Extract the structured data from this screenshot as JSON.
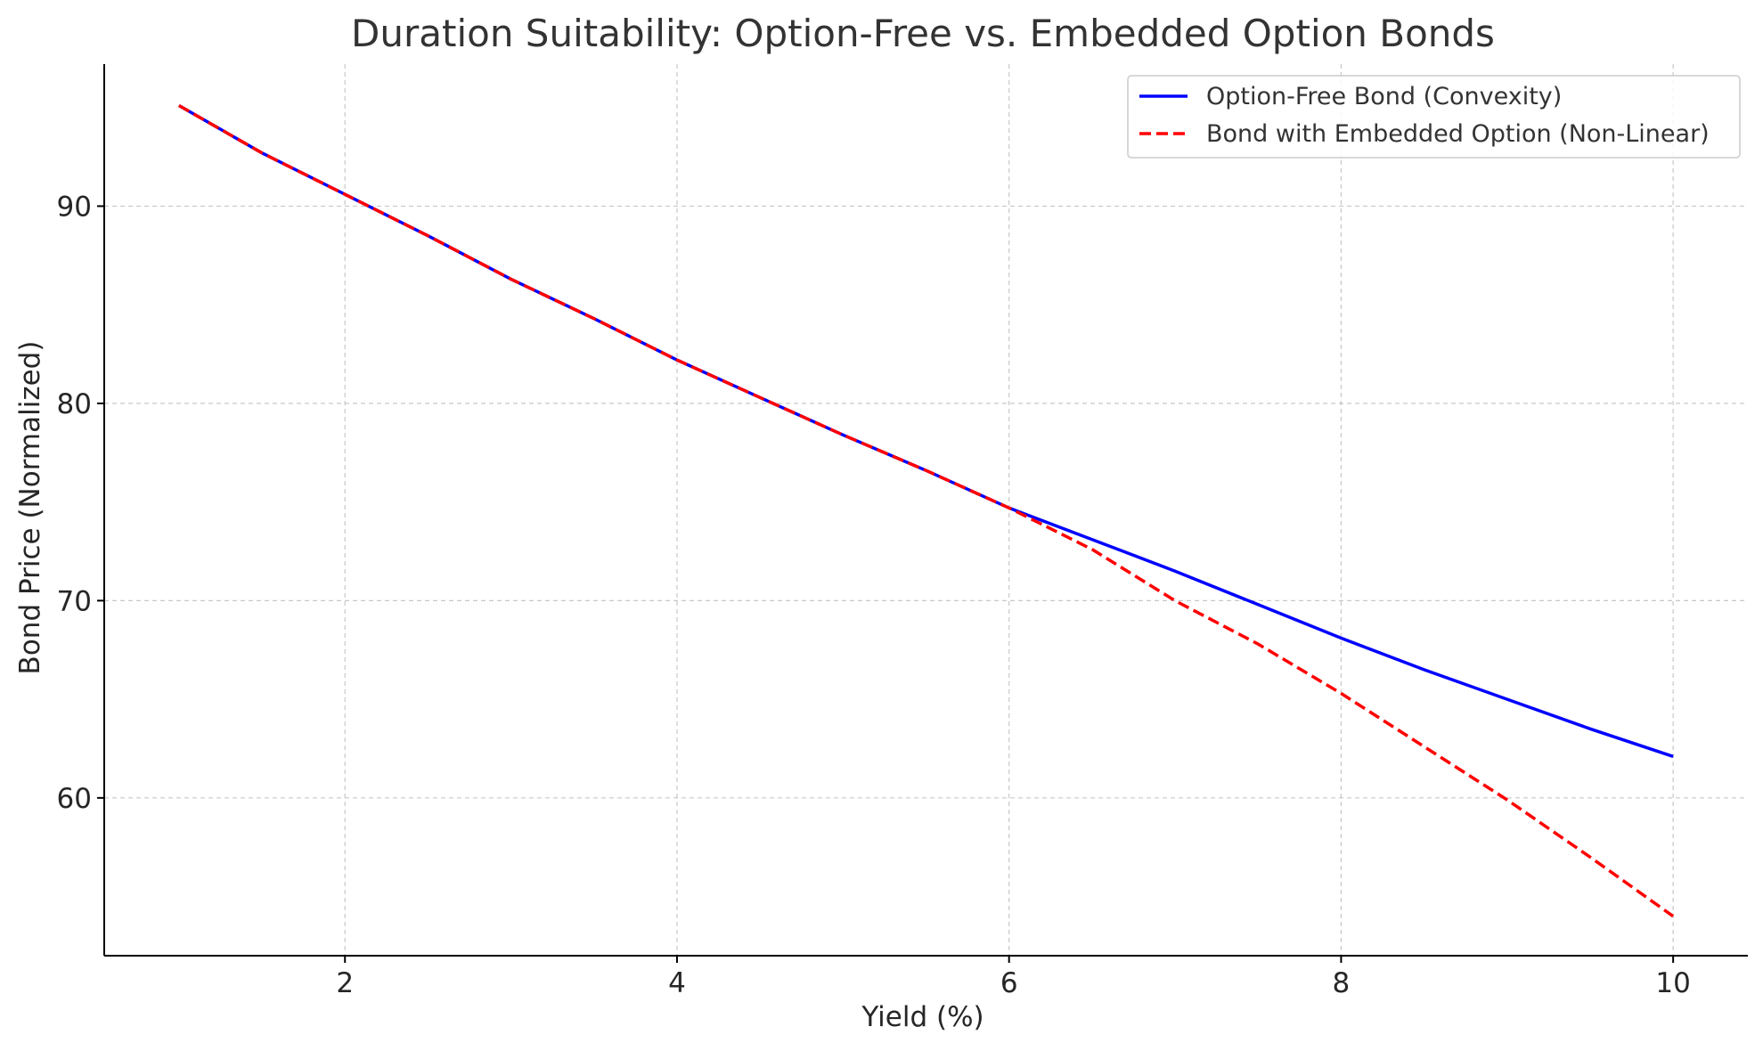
{
  "chart_data": {
    "type": "line",
    "title": "Duration Suitability: Option-Free vs. Embedded Option Bonds",
    "xlabel": "Yield (%)",
    "ylabel": "Bond Price (Normalized)",
    "xlim": [
      0.55,
      10.45
    ],
    "ylim": [
      52.0,
      97.2
    ],
    "xticks": [
      2,
      4,
      6,
      8,
      10
    ],
    "yticks": [
      60,
      70,
      80,
      90
    ],
    "grid": true,
    "legend_position": "top-right",
    "x": [
      1.0,
      1.5,
      2.0,
      2.5,
      3.0,
      3.5,
      4.0,
      4.5,
      5.0,
      5.5,
      6.0,
      6.5,
      7.0,
      7.5,
      8.0,
      8.5,
      9.0,
      9.5,
      10.0
    ],
    "series": [
      {
        "name": "Option-Free Bond (Convexity)",
        "color": "#0000ff",
        "style": "solid",
        "values": [
          95.1,
          92.7,
          90.6,
          88.5,
          86.3,
          84.3,
          82.2,
          80.3,
          78.4,
          76.6,
          74.7,
          73.1,
          71.5,
          69.8,
          68.1,
          66.5,
          65.0,
          63.5,
          62.1
        ]
      },
      {
        "name": "Bond with Embedded Option (Non-Linear)",
        "color": "#ff0000",
        "style": "dashed",
        "values": [
          95.1,
          92.7,
          90.6,
          88.5,
          86.3,
          84.3,
          82.2,
          80.3,
          78.4,
          76.6,
          74.7,
          72.6,
          70.0,
          67.8,
          65.3,
          62.6,
          59.9,
          57.0,
          54.0
        ]
      }
    ]
  }
}
